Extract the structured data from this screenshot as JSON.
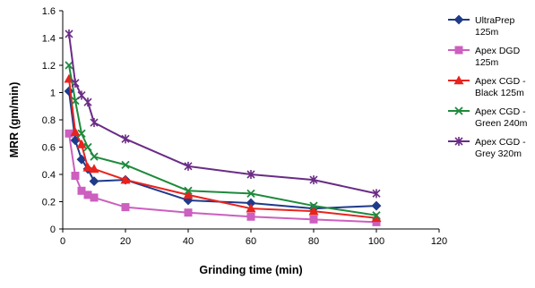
{
  "chart_data": {
    "type": "line",
    "title": "",
    "xlabel": "Grinding time (min)",
    "ylabel": "MRR (gm/min)",
    "xlim": [
      0,
      120
    ],
    "ylim": [
      0,
      1.6
    ],
    "xticks": [
      0,
      20,
      40,
      60,
      80,
      100,
      120
    ],
    "yticks": [
      0,
      0.2,
      0.4,
      0.6,
      0.8,
      1,
      1.2,
      1.4,
      1.6
    ],
    "xtick_labels": [
      "0",
      "20",
      "40",
      "60",
      "80",
      "100",
      "120"
    ],
    "ytick_labels": [
      "0",
      "0.2",
      "0.4",
      "0.6",
      "0.8",
      "1",
      "1.2",
      "1.4",
      "1.6"
    ],
    "grid": false,
    "legend_position": "right",
    "series": [
      {
        "name": "UltraPrep 125m",
        "legend_lines": [
          "UltraPrep",
          "125m"
        ],
        "color": "#1F3A8A",
        "marker": "diamond",
        "x": [
          2,
          4,
          6,
          8,
          10,
          20,
          40,
          60,
          80,
          100
        ],
        "y": [
          1.01,
          0.65,
          0.51,
          0.44,
          0.35,
          0.36,
          0.21,
          0.19,
          0.15,
          0.17
        ]
      },
      {
        "name": "Apex DGD 125m",
        "legend_lines": [
          "Apex DGD",
          "125m"
        ],
        "color": "#CC5FBF",
        "marker": "square",
        "x": [
          2,
          4,
          6,
          8,
          10,
          20,
          40,
          60,
          80,
          100
        ],
        "y": [
          0.7,
          0.39,
          0.28,
          0.25,
          0.23,
          0.16,
          0.12,
          0.09,
          0.07,
          0.05
        ]
      },
      {
        "name": "Apex CGD - Black 125m",
        "legend_lines": [
          "Apex CGD -",
          "Black 125m"
        ],
        "color": "#E8231F",
        "marker": "triangle",
        "x": [
          2,
          4,
          6,
          8,
          10,
          20,
          40,
          60,
          80,
          100
        ],
        "y": [
          1.1,
          0.71,
          0.62,
          0.45,
          0.44,
          0.36,
          0.25,
          0.15,
          0.13,
          0.08
        ]
      },
      {
        "name": "Apex CGD - Green 240m",
        "legend_lines": [
          "Apex CGD -",
          "Green 240m"
        ],
        "color": "#1E8A3C",
        "marker": "x",
        "x": [
          2,
          4,
          6,
          8,
          10,
          20,
          40,
          60,
          80,
          100
        ],
        "y": [
          1.2,
          0.94,
          0.7,
          0.6,
          0.53,
          0.47,
          0.28,
          0.26,
          0.17,
          0.1
        ]
      },
      {
        "name": "Apex CGD - Grey 320m",
        "legend_lines": [
          "Apex CGD -",
          "Grey 320m"
        ],
        "color": "#6A2C86",
        "marker": "star",
        "x": [
          2,
          4,
          6,
          8,
          10,
          20,
          40,
          60,
          80,
          100
        ],
        "y": [
          1.43,
          1.07,
          0.98,
          0.93,
          0.78,
          0.66,
          0.46,
          0.4,
          0.36,
          0.26
        ]
      }
    ]
  }
}
